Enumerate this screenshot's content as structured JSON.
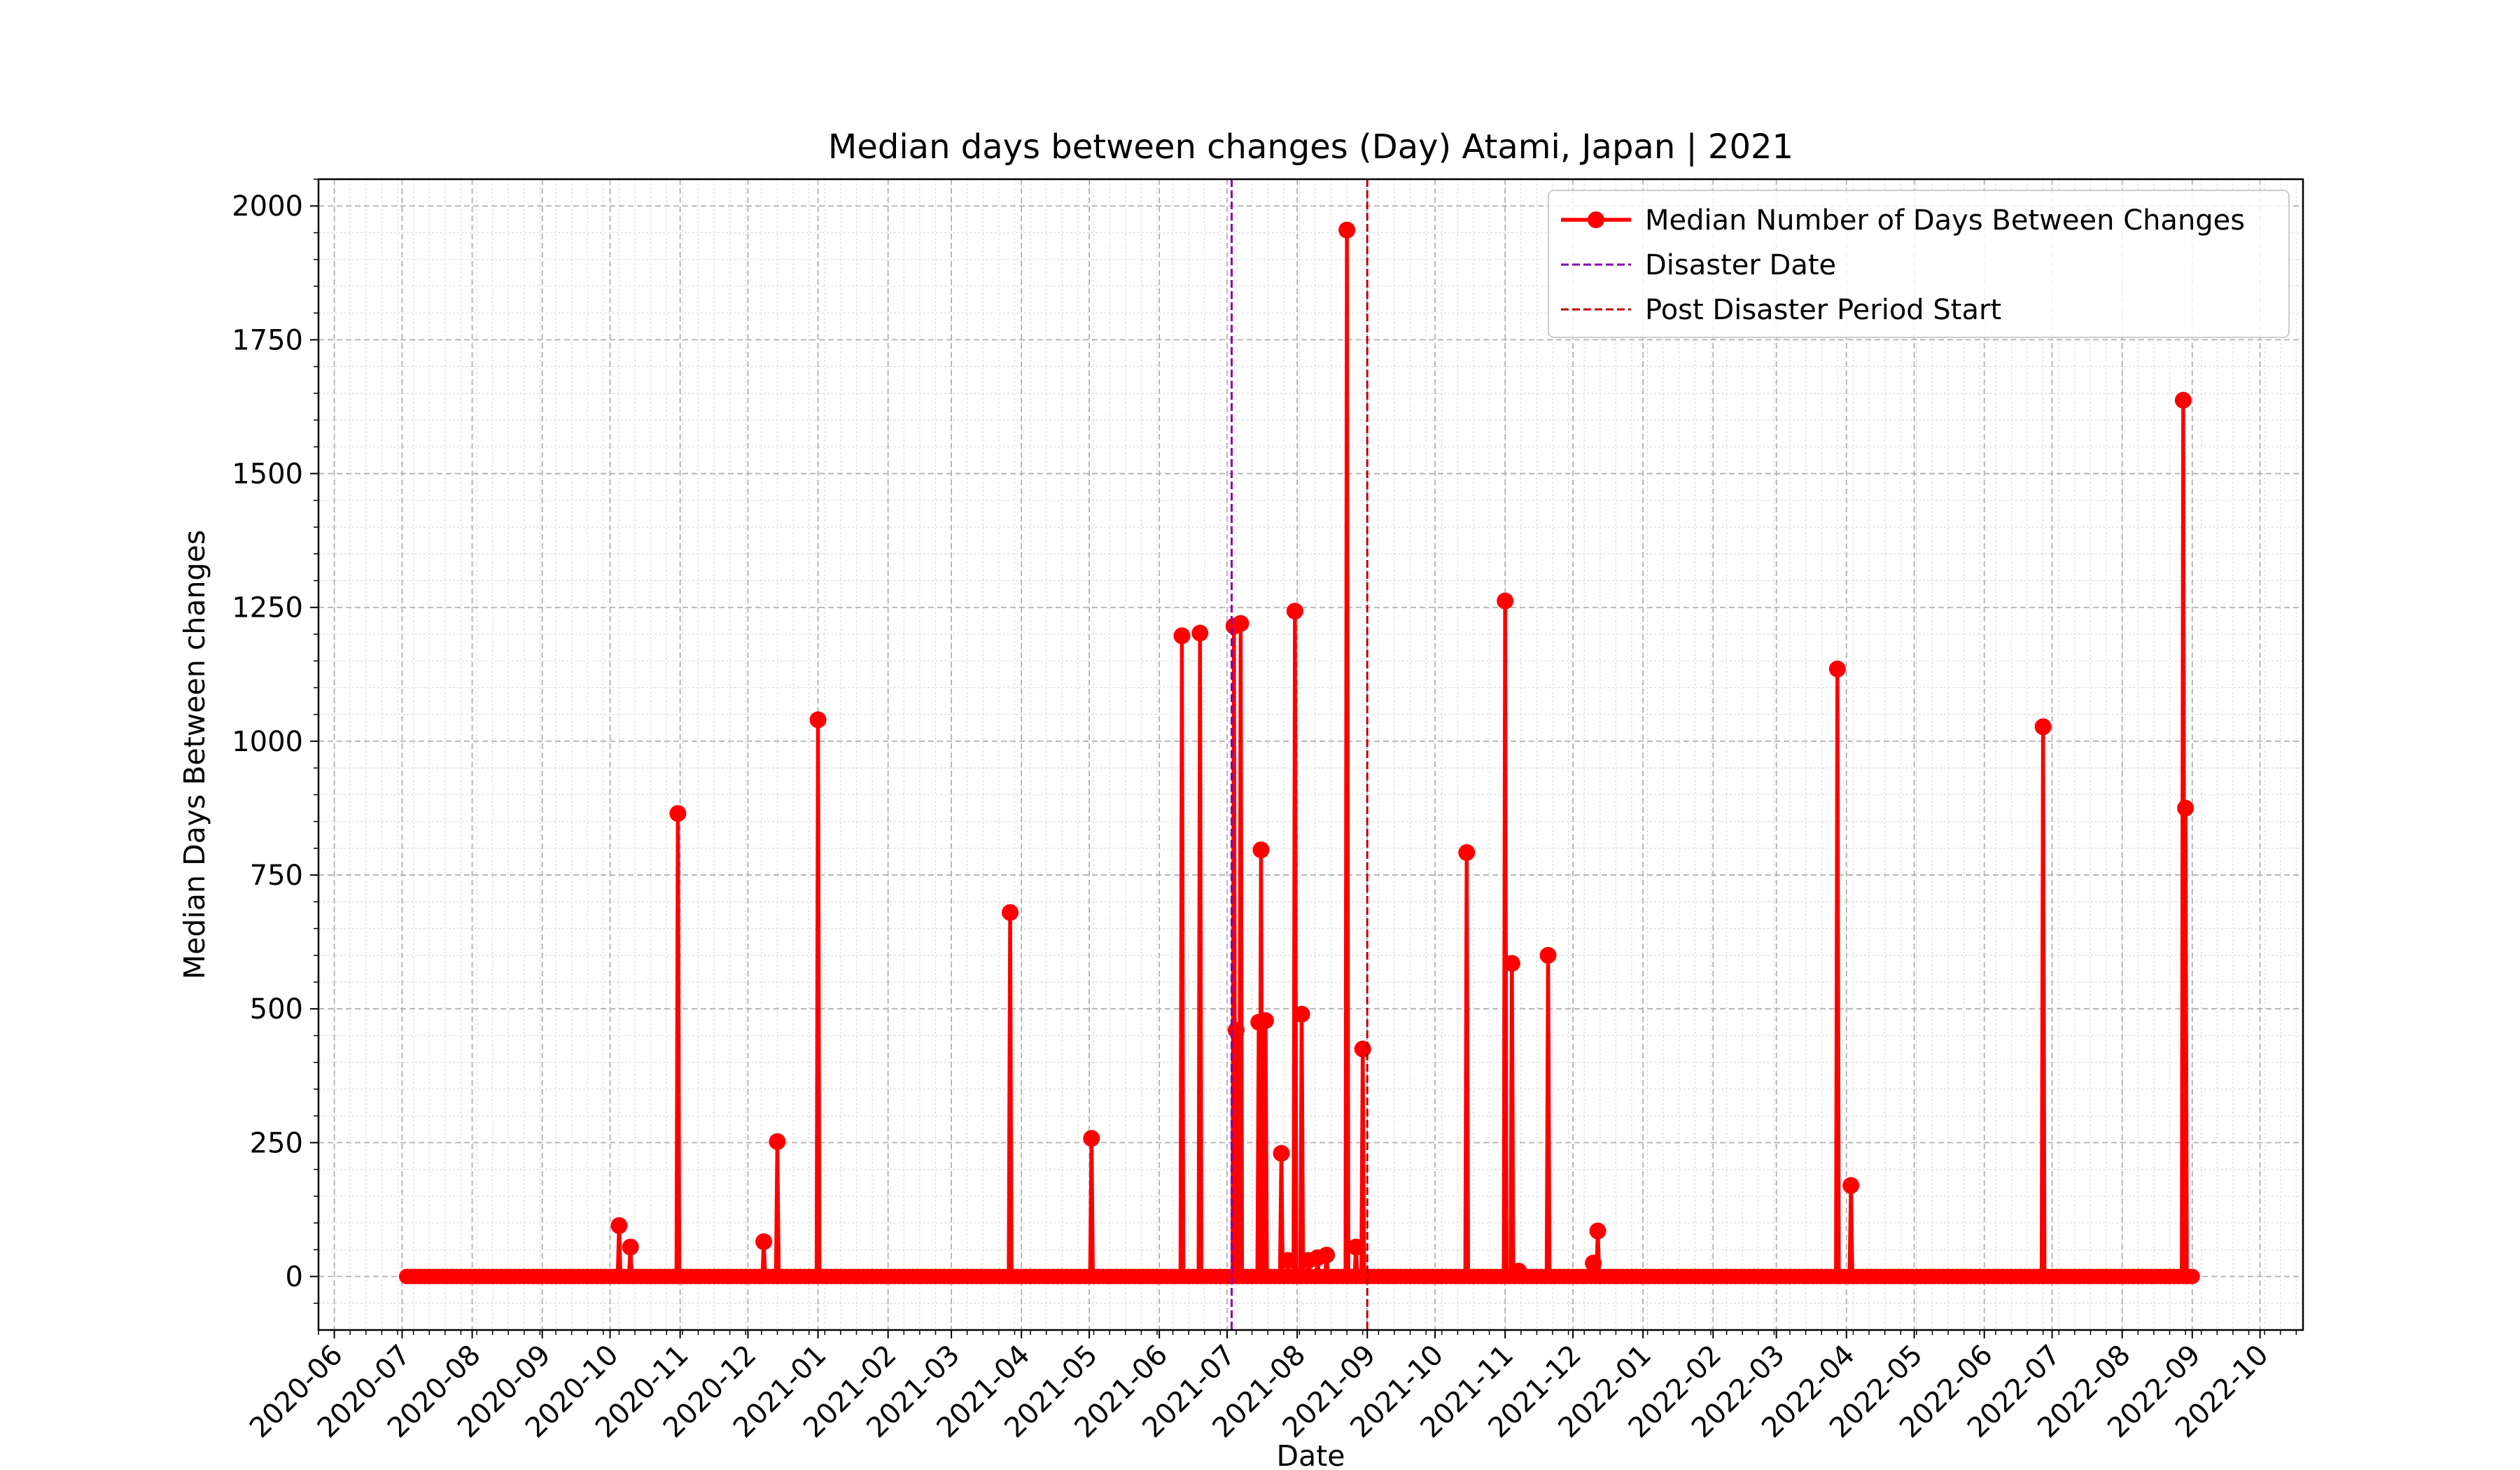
{
  "chart_data": {
    "type": "line",
    "title": "Median days between changes (Day) Atami, Japan | 2021",
    "xlabel": "Date",
    "ylabel": "Median Days Between changes",
    "xlim": [
      "2020-05-25",
      "2022-10-20"
    ],
    "ylim": [
      -100,
      2050
    ],
    "y_ticks": [
      0,
      250,
      500,
      750,
      1000,
      1250,
      1500,
      1750,
      2000
    ],
    "x_ticks": [
      "2020-06",
      "2020-07",
      "2020-08",
      "2020-09",
      "2020-10",
      "2020-11",
      "2020-12",
      "2021-01",
      "2021-02",
      "2021-03",
      "2021-04",
      "2021-05",
      "2021-06",
      "2021-07",
      "2021-08",
      "2021-09",
      "2021-10",
      "2021-11",
      "2021-12",
      "2022-01",
      "2022-02",
      "2022-03",
      "2022-04",
      "2022-05",
      "2022-06",
      "2022-07",
      "2022-08",
      "2022-09",
      "2022-10"
    ],
    "grid": true,
    "legend_position": "top-right",
    "series": [
      {
        "name": "Median Number of Days Between Changes",
        "color": "#ff0000",
        "x_range": [
          "2020-07-03",
          "2022-09-01"
        ],
        "baseline_value": 0,
        "spikes": [
          {
            "date": "2020-10-05",
            "value": 95
          },
          {
            "date": "2020-10-10",
            "value": 55
          },
          {
            "date": "2020-10-31",
            "value": 865
          },
          {
            "date": "2020-12-08",
            "value": 65
          },
          {
            "date": "2020-12-14",
            "value": 252
          },
          {
            "date": "2021-01-01",
            "value": 1040
          },
          {
            "date": "2021-03-27",
            "value": 680
          },
          {
            "date": "2021-05-02",
            "value": 258
          },
          {
            "date": "2021-06-11",
            "value": 1197
          },
          {
            "date": "2021-06-19",
            "value": 1202
          },
          {
            "date": "2021-07-04",
            "value": 1215
          },
          {
            "date": "2021-07-05",
            "value": 460
          },
          {
            "date": "2021-07-07",
            "value": 1220
          },
          {
            "date": "2021-07-15",
            "value": 475
          },
          {
            "date": "2021-07-16",
            "value": 797
          },
          {
            "date": "2021-07-18",
            "value": 478
          },
          {
            "date": "2021-07-25",
            "value": 230
          },
          {
            "date": "2021-07-28",
            "value": 30
          },
          {
            "date": "2021-07-31",
            "value": 1243
          },
          {
            "date": "2021-08-03",
            "value": 490
          },
          {
            "date": "2021-08-06",
            "value": 30
          },
          {
            "date": "2021-08-10",
            "value": 35
          },
          {
            "date": "2021-08-14",
            "value": 40
          },
          {
            "date": "2021-08-23",
            "value": 1955
          },
          {
            "date": "2021-08-27",
            "value": 55
          },
          {
            "date": "2021-08-30",
            "value": 425
          },
          {
            "date": "2021-10-15",
            "value": 792
          },
          {
            "date": "2021-11-01",
            "value": 1262
          },
          {
            "date": "2021-11-04",
            "value": 585
          },
          {
            "date": "2021-11-07",
            "value": 10
          },
          {
            "date": "2021-11-20",
            "value": 600
          },
          {
            "date": "2021-12-10",
            "value": 25
          },
          {
            "date": "2021-12-12",
            "value": 85
          },
          {
            "date": "2022-03-28",
            "value": 1135
          },
          {
            "date": "2022-04-03",
            "value": 170
          },
          {
            "date": "2022-06-27",
            "value": 1027
          },
          {
            "date": "2022-08-28",
            "value": 1637
          },
          {
            "date": "2022-08-29",
            "value": 875
          }
        ]
      },
      {
        "name": "Disaster Date",
        "color": "#8000b0",
        "style": "dashed-vertical",
        "date": "2021-07-03"
      },
      {
        "name": "Post Disaster Period Start",
        "color": "#c00000",
        "style": "dashed-vertical",
        "date": "2021-09-01"
      }
    ]
  }
}
